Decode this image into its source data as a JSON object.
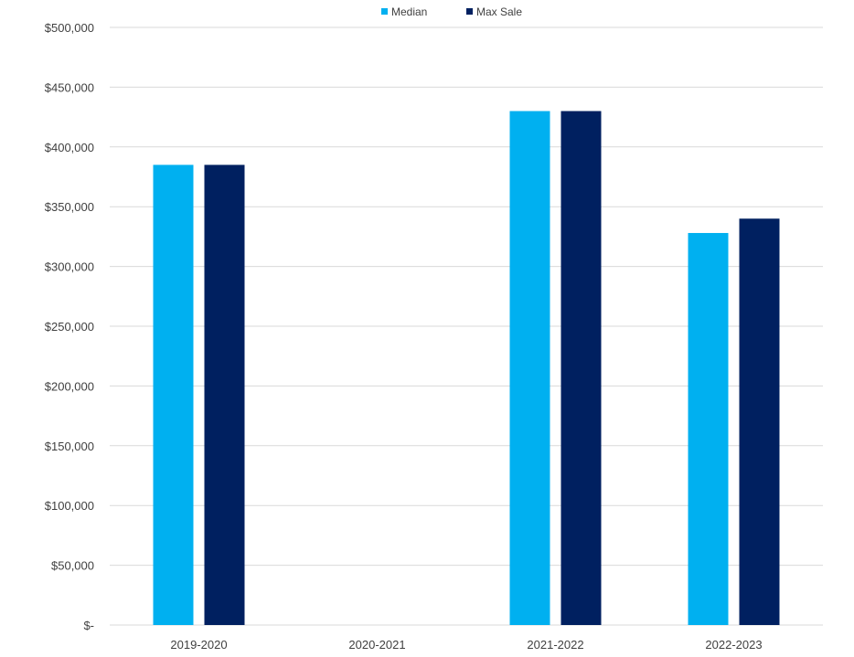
{
  "chart_data": {
    "type": "bar",
    "categories": [
      "2019-2020",
      "2020-2021",
      "2021-2022",
      "2022-2023"
    ],
    "series": [
      {
        "name": "Median",
        "color": "#00B0F0",
        "values": [
          385000,
          null,
          430000,
          328000
        ]
      },
      {
        "name": "Max Sale",
        "color": "#002060",
        "values": [
          385000,
          null,
          430000,
          340000
        ]
      }
    ],
    "y_ticks": [
      "$-",
      "$50,000",
      "$100,000",
      "$150,000",
      "$200,000",
      "$250,000",
      "$300,000",
      "$350,000",
      "$400,000",
      "$450,000",
      "$500,000"
    ],
    "ylim": [
      0,
      500000
    ],
    "grid": true,
    "legend_position": "top-center",
    "title": "",
    "xlabel": "",
    "ylabel": ""
  }
}
